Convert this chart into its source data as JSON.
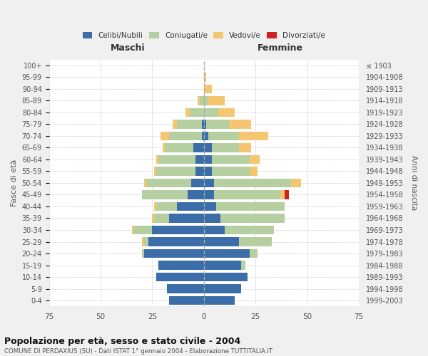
{
  "age_groups": [
    "0-4",
    "5-9",
    "10-14",
    "15-19",
    "20-24",
    "25-29",
    "30-34",
    "35-39",
    "40-44",
    "45-49",
    "50-54",
    "55-59",
    "60-64",
    "65-69",
    "70-74",
    "75-79",
    "80-84",
    "85-89",
    "90-94",
    "95-99",
    "100+"
  ],
  "birth_years": [
    "1999-2003",
    "1994-1998",
    "1989-1993",
    "1984-1988",
    "1979-1983",
    "1974-1978",
    "1969-1973",
    "1964-1968",
    "1959-1963",
    "1954-1958",
    "1949-1953",
    "1944-1948",
    "1939-1943",
    "1934-1938",
    "1929-1933",
    "1924-1928",
    "1919-1923",
    "1914-1918",
    "1909-1913",
    "1904-1908",
    "≤ 1903"
  ],
  "maschi": {
    "celibi": [
      17,
      18,
      23,
      22,
      29,
      27,
      25,
      17,
      13,
      8,
      6,
      4,
      4,
      5,
      1,
      1,
      0,
      0,
      0,
      0,
      0
    ],
    "coniugati": [
      0,
      0,
      0,
      0,
      1,
      2,
      9,
      7,
      10,
      22,
      22,
      19,
      18,
      14,
      16,
      12,
      7,
      2,
      0,
      0,
      0
    ],
    "vedovi": [
      0,
      0,
      0,
      0,
      0,
      1,
      1,
      1,
      1,
      0,
      1,
      1,
      1,
      1,
      4,
      2,
      2,
      1,
      0,
      0,
      0
    ],
    "divorziati": [
      0,
      0,
      0,
      0,
      0,
      0,
      0,
      0,
      0,
      0,
      0,
      0,
      0,
      0,
      0,
      0,
      0,
      0,
      0,
      0,
      0
    ]
  },
  "femmine": {
    "nubili": [
      15,
      18,
      21,
      18,
      22,
      17,
      10,
      8,
      6,
      5,
      5,
      4,
      4,
      4,
      2,
      1,
      0,
      0,
      0,
      0,
      0
    ],
    "coniugate": [
      0,
      0,
      0,
      2,
      4,
      16,
      24,
      31,
      33,
      32,
      37,
      18,
      18,
      13,
      15,
      11,
      7,
      2,
      0,
      0,
      0
    ],
    "vedove": [
      0,
      0,
      0,
      0,
      0,
      0,
      0,
      0,
      0,
      2,
      5,
      4,
      5,
      6,
      14,
      11,
      8,
      8,
      4,
      1,
      0
    ],
    "divorziate": [
      0,
      0,
      0,
      0,
      0,
      0,
      0,
      0,
      0,
      2,
      0,
      0,
      0,
      0,
      0,
      0,
      0,
      0,
      0,
      0,
      0
    ]
  },
  "colors": {
    "celibi_nubili": "#3b6ea8",
    "coniugati": "#b5cfa0",
    "vedovi": "#f5c570",
    "divorziati": "#cc2222"
  },
  "xlim": 75,
  "title": "Popolazione per età, sesso e stato civile - 2004",
  "subtitle": "COMUNE DI PERDAXIUS (SU) - Dati ISTAT 1° gennaio 2004 - Elaborazione TUTTITALIA.IT",
  "ylabel": "Fasce di età",
  "ylabel_right": "Anni di nascita",
  "xlabel_left": "Maschi",
  "xlabel_right": "Femmine",
  "bg_color": "#f0f0f0",
  "plot_bg": "#ffffff"
}
